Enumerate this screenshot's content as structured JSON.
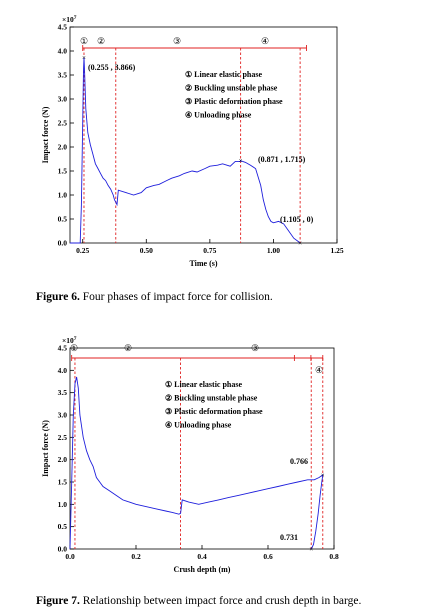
{
  "figure1": {
    "caption_label": "Figure 6.",
    "caption_text": " Four phases of impact force for collision.",
    "chart_data": {
      "type": "line",
      "xlabel": "Time (s)",
      "ylabel": "Impact force (N)",
      "y_multiplier": "×10",
      "y_multiplier_exp": "7",
      "xlim": [
        0.2,
        1.25
      ],
      "ylim": [
        0,
        4.5
      ],
      "xticks": [
        0.25,
        0.5,
        0.75,
        1.0,
        1.25
      ],
      "xtick_labels": [
        "0.25",
        "0.50",
        "0.75",
        "1.00",
        "1.25"
      ],
      "yticks": [
        0,
        0.5,
        1.0,
        1.5,
        2.0,
        2.5,
        3.0,
        3.5,
        4.0,
        4.5
      ],
      "ytick_labels": [
        "0.0",
        "0.5",
        "1.0",
        "1.5",
        "2.0",
        "2.5",
        "3.0",
        "3.5",
        "4.0",
        "4.5"
      ],
      "series": [
        {
          "color": "#1f1fdc",
          "x": [
            0.2,
            0.24,
            0.245,
            0.25,
            0.253,
            0.255,
            0.258,
            0.262,
            0.27,
            0.28,
            0.29,
            0.3,
            0.31,
            0.32,
            0.33,
            0.34,
            0.35,
            0.36,
            0.37,
            0.375,
            0.38,
            0.385,
            0.39,
            0.42,
            0.45,
            0.48,
            0.5,
            0.53,
            0.55,
            0.58,
            0.6,
            0.63,
            0.65,
            0.68,
            0.7,
            0.73,
            0.75,
            0.78,
            0.8,
            0.83,
            0.85,
            0.87,
            0.871,
            0.89,
            0.91,
            0.93,
            0.95,
            0.96,
            0.97,
            0.98,
            0.99,
            1.0,
            1.02,
            1.04,
            1.06,
            1.08,
            1.1,
            1.105
          ],
          "y": [
            0,
            0,
            0.8,
            2.5,
            3.6,
            3.866,
            3.5,
            2.8,
            2.3,
            2.05,
            1.85,
            1.65,
            1.55,
            1.45,
            1.35,
            1.3,
            1.2,
            1.12,
            1.0,
            0.9,
            0.85,
            0.8,
            1.1,
            1.05,
            1.0,
            1.05,
            1.15,
            1.2,
            1.22,
            1.3,
            1.35,
            1.4,
            1.45,
            1.5,
            1.48,
            1.55,
            1.6,
            1.62,
            1.65,
            1.6,
            1.7,
            1.7,
            1.715,
            1.68,
            1.62,
            1.55,
            1.2,
            0.9,
            0.7,
            0.55,
            0.45,
            0.42,
            0.45,
            0.4,
            0.25,
            0.1,
            0.02,
            0
          ]
        }
      ],
      "phase_lines_x": [
        0.255,
        0.38,
        0.871,
        1.105
      ],
      "phase_labels": [
        "①",
        "②",
        "③",
        "④"
      ],
      "legend": [
        "① Linear elastic phase",
        "② Buckling unstable phase",
        "③ Plastic deformation phase",
        "④ Unloading phase"
      ],
      "annotations": [
        {
          "text": "(0.255 , 3.866)",
          "x": 0.255,
          "y": 3.866
        },
        {
          "text": "(0.871 , 1.715)",
          "x": 0.871,
          "y": 1.715
        },
        {
          "text": "(1.105 , 0)",
          "x": 1.105,
          "y": 0
        }
      ]
    }
  },
  "figure2": {
    "caption_label": "Figure 7.",
    "caption_text": " Relationship between impact force and crush depth in barge.",
    "chart_data": {
      "type": "line",
      "xlabel": "Crush depth (m)",
      "ylabel": "Impact force (N)",
      "y_multiplier": "×10",
      "y_multiplier_exp": "7",
      "xlim": [
        0,
        0.8
      ],
      "ylim": [
        0,
        4.5
      ],
      "xticks": [
        0.0,
        0.2,
        0.4,
        0.6,
        0.8
      ],
      "xtick_labels": [
        "0.0",
        "0.2",
        "0.4",
        "0.6",
        "0.8"
      ],
      "yticks": [
        0,
        0.5,
        1.0,
        1.5,
        2.0,
        2.5,
        3.0,
        3.5,
        4.0,
        4.5
      ],
      "ytick_labels": [
        "0.0",
        "0.5",
        "1.0",
        "1.5",
        "2.0",
        "2.5",
        "3.0",
        "3.5",
        "4.0",
        "4.5"
      ],
      "series": [
        {
          "color": "#1f1fdc",
          "x": [
            0.0,
            0.005,
            0.01,
            0.015,
            0.02,
            0.025,
            0.03,
            0.04,
            0.05,
            0.06,
            0.07,
            0.08,
            0.09,
            0.1,
            0.12,
            0.14,
            0.16,
            0.18,
            0.2,
            0.23,
            0.26,
            0.29,
            0.31,
            0.33,
            0.335,
            0.34,
            0.36,
            0.39,
            0.42,
            0.45,
            0.48,
            0.51,
            0.54,
            0.57,
            0.6,
            0.63,
            0.66,
            0.69,
            0.72,
            0.74,
            0.755,
            0.766,
            0.763,
            0.758,
            0.752,
            0.745,
            0.738,
            0.731
          ],
          "y": [
            0,
            1.5,
            3.0,
            3.7,
            3.85,
            3.6,
            3.0,
            2.5,
            2.2,
            2.0,
            1.85,
            1.6,
            1.5,
            1.4,
            1.3,
            1.2,
            1.1,
            1.05,
            1.0,
            0.95,
            0.9,
            0.85,
            0.82,
            0.78,
            0.8,
            1.1,
            1.05,
            1.0,
            1.05,
            1.1,
            1.15,
            1.2,
            1.25,
            1.3,
            1.35,
            1.4,
            1.45,
            1.5,
            1.55,
            1.55,
            1.6,
            1.66,
            1.5,
            1.2,
            0.8,
            0.4,
            0.1,
            0
          ]
        }
      ],
      "phase_lines_x": [
        0.015,
        0.335,
        0.731,
        0.766
      ],
      "phase_labels": [
        "①",
        "②",
        "③",
        "④"
      ],
      "legend": [
        "① Linear elastic phase",
        "② Buckling unstable phase",
        "③ Plastic deformation phase",
        "④ Unloading phase"
      ],
      "annotations": [
        {
          "text": "0.766",
          "x": 0.766,
          "y": 1.66
        },
        {
          "text": "0.731",
          "x": 0.731,
          "y": 0
        }
      ]
    }
  }
}
